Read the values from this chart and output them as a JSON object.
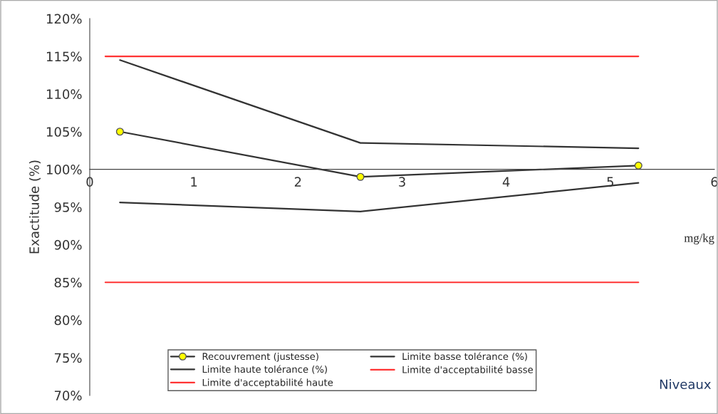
{
  "chart_data": {
    "type": "line",
    "ylabel": "Exactitude (%)",
    "xlabel": "Niveaux",
    "annotations": [
      "mg/kg"
    ],
    "xlim": [
      0,
      6
    ],
    "xticks": [
      0,
      1,
      2,
      3,
      4,
      5,
      6
    ],
    "ylim": [
      70,
      120
    ],
    "yticks": [
      {
        "value": 70,
        "label": "70%"
      },
      {
        "value": 75,
        "label": "75%"
      },
      {
        "value": 80,
        "label": "80%"
      },
      {
        "value": 85,
        "label": "85%"
      },
      {
        "value": 90,
        "label": "90%"
      },
      {
        "value": 95,
        "label": "95%"
      },
      {
        "value": 100,
        "label": "100%"
      },
      {
        "value": 105,
        "label": "105%"
      },
      {
        "value": 110,
        "label": "110%"
      },
      {
        "value": 115,
        "label": "115%"
      },
      {
        "value": 120,
        "label": "120%"
      }
    ],
    "grid": false,
    "legend": "bottom",
    "series": [
      {
        "name": "Recouvrement (justesse)",
        "color": "#333333",
        "marker": "circle",
        "x": [
          0.29,
          2.6,
          5.27
        ],
        "values": [
          105,
          99,
          100.5
        ]
      },
      {
        "name": "Limite basse tolérance (%)",
        "color": "#333333",
        "x": [
          0.29,
          2.6,
          5.27
        ],
        "values": [
          95.6,
          94.4,
          98.2
        ]
      },
      {
        "name": "Limite haute tolérance (%)",
        "color": "#333333",
        "x": [
          0.29,
          2.6,
          5.27
        ],
        "values": [
          114.5,
          103.5,
          102.8
        ]
      },
      {
        "name": "Limite d'acceptabilité basse",
        "color": "#ff3333",
        "x": [
          0.15,
          5.27
        ],
        "values": [
          85,
          85
        ]
      },
      {
        "name": "Limite d'acceptabilité haute",
        "color": "#ff3333",
        "x": [
          0.15,
          5.27
        ],
        "values": [
          115,
          115
        ]
      }
    ]
  }
}
